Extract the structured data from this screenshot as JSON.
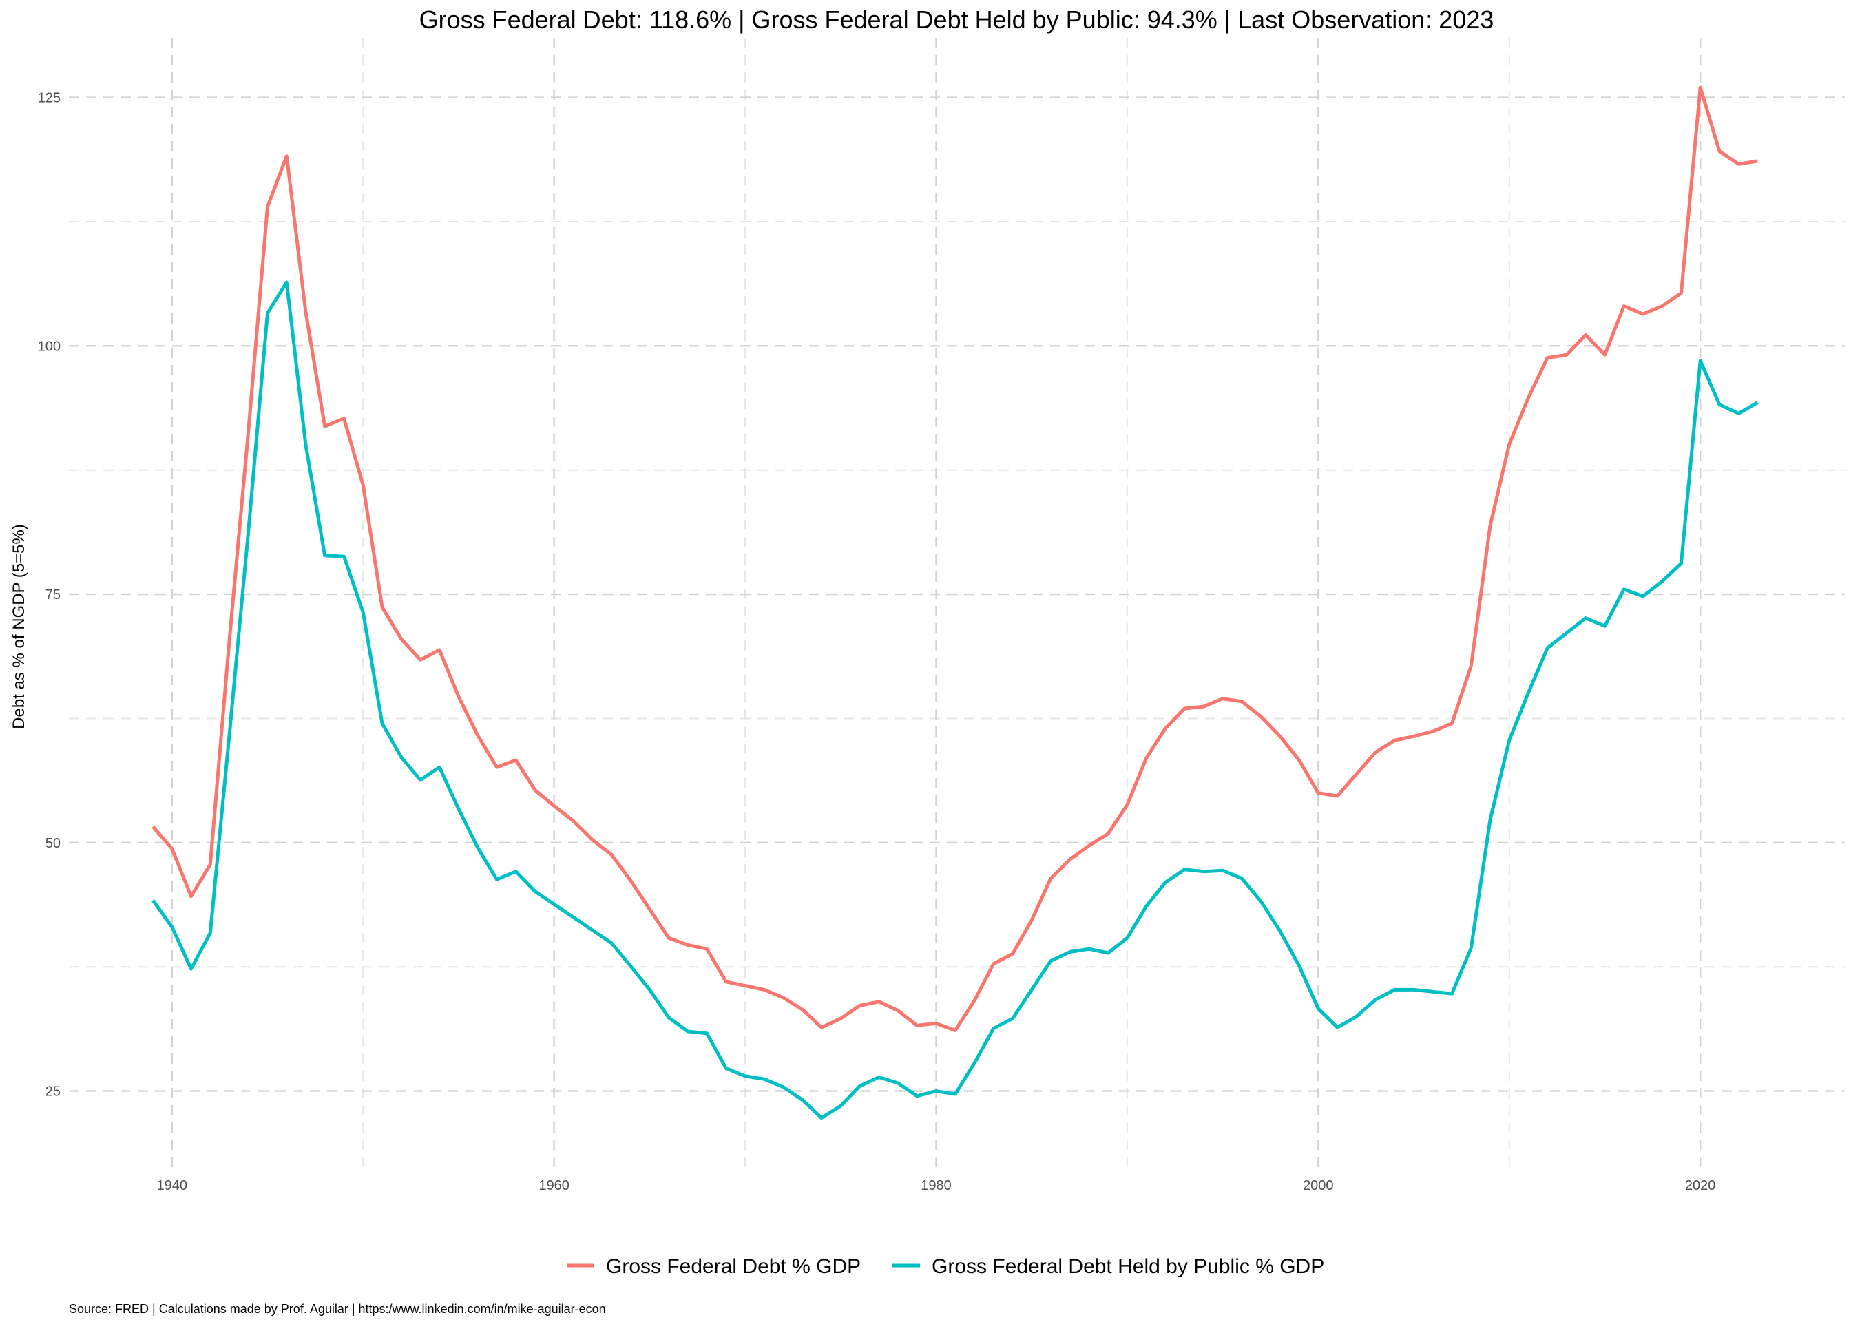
{
  "chart_data": {
    "type": "line",
    "title": "Gross Federal Debt: 118.6% | Gross Federal Debt Held by Public: 94.3% | Last Observation: 2023",
    "xlabel": "",
    "ylabel": "Debt as % of NGDP (5=5%)",
    "caption": "Source: FRED | Calculations made by Prof. Aguilar | https:/www.linkedin.com/in/mike-aguilar-econ",
    "xlim": [
      1934.6,
      1927.6
    ],
    "ylim": [
      17.0,
      131.0
    ],
    "xticks": [
      1940,
      1960,
      1980,
      2000,
      2020
    ],
    "yticks": [
      25,
      50,
      75,
      100,
      125
    ],
    "grid": true,
    "legend_position": "bottom",
    "x": [
      1939,
      1940,
      1941,
      1942,
      1943,
      1944,
      1945,
      1946,
      1947,
      1948,
      1949,
      1950,
      1951,
      1952,
      1953,
      1954,
      1955,
      1956,
      1957,
      1958,
      1959,
      1960,
      1961,
      1962,
      1963,
      1964,
      1965,
      1966,
      1967,
      1968,
      1969,
      1970,
      1971,
      1972,
      1973,
      1974,
      1975,
      1976,
      1977,
      1978,
      1979,
      1980,
      1981,
      1982,
      1983,
      1984,
      1985,
      1986,
      1987,
      1988,
      1989,
      1990,
      1991,
      1992,
      1993,
      1994,
      1995,
      1996,
      1997,
      1998,
      1999,
      2000,
      2001,
      2002,
      2003,
      2004,
      2005,
      2006,
      2007,
      2008,
      2009,
      2010,
      2011,
      2012,
      2013,
      2014,
      2015,
      2016,
      2017,
      2018,
      2019,
      2020,
      2021,
      2022,
      2023
    ],
    "series": [
      {
        "name": "Gross Federal Debt % GDP",
        "color": "#F8766D",
        "values": [
          51.6,
          49.4,
          44.6,
          47.8,
          70.3,
          91.5,
          114.0,
          119.1,
          103.4,
          91.9,
          92.7,
          86.0,
          73.7,
          70.5,
          68.4,
          69.4,
          64.7,
          60.8,
          57.6,
          58.3,
          55.3,
          53.7,
          52.2,
          50.3,
          48.8,
          46.2,
          43.3,
          40.4,
          39.7,
          39.3,
          36.0,
          35.6,
          35.2,
          34.4,
          33.2,
          31.4,
          32.3,
          33.6,
          34.0,
          33.1,
          31.6,
          31.8,
          31.1,
          34.1,
          37.8,
          38.8,
          42.2,
          46.4,
          48.3,
          49.7,
          50.9,
          53.8,
          58.5,
          61.5,
          63.5,
          63.7,
          64.5,
          64.2,
          62.7,
          60.7,
          58.3,
          55.0,
          54.7,
          56.9,
          59.1,
          60.3,
          60.7,
          61.2,
          62.0,
          67.8,
          81.9,
          90.1,
          94.8,
          98.8,
          99.1,
          101.1,
          99.1,
          104.0,
          103.2,
          104.0,
          105.3,
          126.0,
          119.6,
          118.3,
          118.6
        ]
      },
      {
        "name": "Gross Federal Debt Held by Public % GDP",
        "color": "#00BFC4",
        "values": [
          44.2,
          41.5,
          37.3,
          40.9,
          60.8,
          81.4,
          103.3,
          106.4,
          90.0,
          78.9,
          78.8,
          73.2,
          62.0,
          58.6,
          56.3,
          57.6,
          53.4,
          49.5,
          46.3,
          47.1,
          45.1,
          43.8,
          42.5,
          41.2,
          39.9,
          37.6,
          35.2,
          32.4,
          31.0,
          30.8,
          27.3,
          26.5,
          26.2,
          25.4,
          24.1,
          22.3,
          23.5,
          25.5,
          26.4,
          25.8,
          24.5,
          25.0,
          24.7,
          27.8,
          31.3,
          32.3,
          35.2,
          38.1,
          39.0,
          39.3,
          38.9,
          40.4,
          43.6,
          46.0,
          47.3,
          47.1,
          47.2,
          46.4,
          44.1,
          41.1,
          37.6,
          33.3,
          31.4,
          32.5,
          34.2,
          35.2,
          35.2,
          35.0,
          34.8,
          39.4,
          52.3,
          60.3,
          65.1,
          69.6,
          71.1,
          72.6,
          71.8,
          75.5,
          74.8,
          76.3,
          78.1,
          98.5,
          94.1,
          93.2,
          94.3
        ]
      }
    ]
  }
}
